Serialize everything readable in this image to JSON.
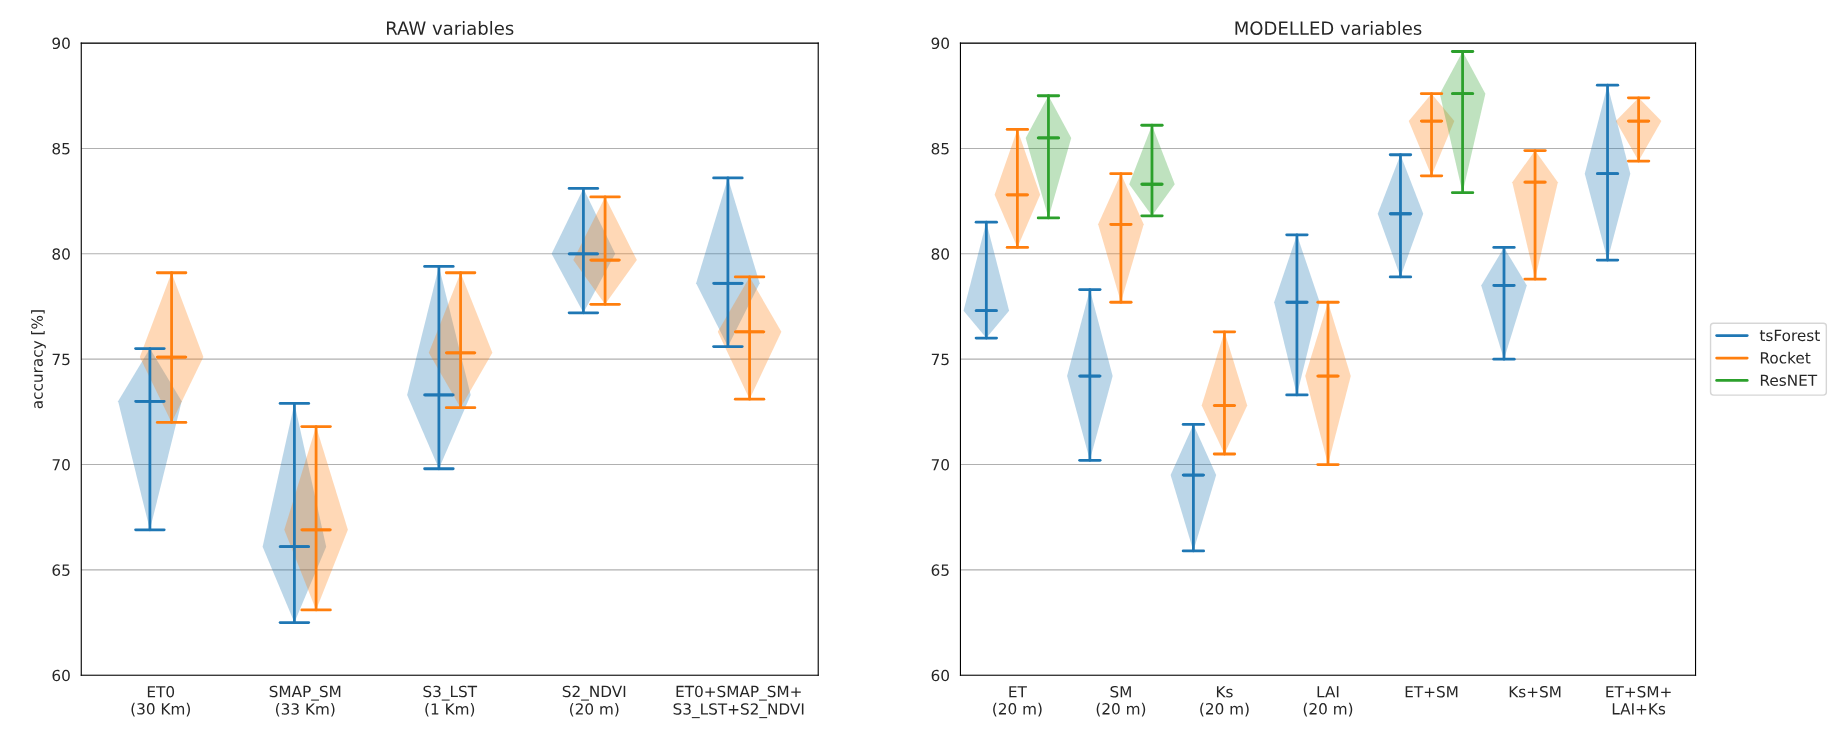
{
  "chart_data": [
    {
      "type": "box",
      "title": "RAW variables",
      "ylabel": "accuracy [%]",
      "categories": [
        "ET0\n(30 Km)",
        "SMAP_SM\n(33 Km)",
        "S3_LST\n(1 Km)",
        "S2_NDVI\n(20 m)",
        "ET0+SMAP_SM+\nS3_LST+S2_NDVI"
      ],
      "ylim": [
        60,
        90
      ],
      "yticks": [
        60,
        65,
        70,
        75,
        80,
        85,
        90
      ],
      "grid": "y",
      "legend": false,
      "series": [
        {
          "color": "#1f77b4",
          "boxes": [
            {
              "low": 66.9,
              "q1": 73.0,
              "median": 73.0,
              "q3": 73.0,
              "high": 75.5
            },
            {
              "low": 62.5,
              "q1": 66.1,
              "median": 66.1,
              "q3": 66.1,
              "high": 72.9
            },
            {
              "low": 69.8,
              "q1": 73.3,
              "median": 73.3,
              "q3": 73.3,
              "high": 79.4
            },
            {
              "low": 77.2,
              "q1": 80.0,
              "median": 80.0,
              "q3": 80.0,
              "high": 83.1
            },
            {
              "low": 75.6,
              "q1": 78.6,
              "median": 78.6,
              "q3": 78.6,
              "high": 83.6
            }
          ]
        },
        {
          "color": "#ff7f0e",
          "boxes": [
            {
              "low": 72.0,
              "q1": 75.1,
              "median": 75.1,
              "q3": 75.1,
              "high": 79.1
            },
            {
              "low": 63.1,
              "q1": 66.9,
              "median": 66.9,
              "q3": 66.9,
              "high": 71.8
            },
            {
              "low": 72.7,
              "q1": 75.3,
              "median": 75.3,
              "q3": 75.3,
              "high": 79.1
            },
            {
              "low": 77.6,
              "q1": 79.7,
              "median": 79.7,
              "q3": 79.7,
              "high": 82.7
            },
            {
              "low": 73.1,
              "q1": 76.3,
              "median": 76.3,
              "q3": 76.3,
              "high": 78.9
            }
          ]
        }
      ]
    },
    {
      "type": "box",
      "title": "MODELLED variables",
      "categories": [
        "ET\n(20 m)",
        "SM\n(20 m)",
        "Ks\n(20 m)",
        "LAI\n(20 m)",
        "ET+SM",
        "Ks+SM",
        "ET+SM+\nLAI+Ks"
      ],
      "ylim": [
        60,
        90
      ],
      "yticks": [
        60,
        65,
        70,
        75,
        80,
        85,
        90
      ],
      "grid": "y",
      "legend": "right",
      "series": [
        {
          "name": "tsForest",
          "color": "#1f77b4",
          "boxes": [
            {
              "low": 76.0,
              "q1": 77.3,
              "median": 77.3,
              "q3": 77.3,
              "high": 81.5
            },
            {
              "low": 70.2,
              "q1": 74.2,
              "median": 74.2,
              "q3": 74.2,
              "high": 78.3
            },
            {
              "low": 65.9,
              "q1": 69.5,
              "median": 69.5,
              "q3": 69.5,
              "high": 71.9
            },
            {
              "low": 73.3,
              "q1": 77.7,
              "median": 77.7,
              "q3": 77.7,
              "high": 80.9
            },
            {
              "low": 78.9,
              "q1": 81.9,
              "median": 81.9,
              "q3": 81.9,
              "high": 84.7
            },
            {
              "low": 75.0,
              "q1": 78.5,
              "median": 78.5,
              "q3": 78.5,
              "high": 80.3
            },
            {
              "low": 79.7,
              "q1": 83.8,
              "median": 83.8,
              "q3": 83.8,
              "high": 88.0
            }
          ]
        },
        {
          "name": "Rocket",
          "color": "#ff7f0e",
          "boxes": [
            {
              "low": 80.3,
              "q1": 82.8,
              "median": 82.8,
              "q3": 82.8,
              "high": 85.9
            },
            {
              "low": 77.7,
              "q1": 81.4,
              "median": 81.4,
              "q3": 81.4,
              "high": 83.8
            },
            {
              "low": 70.5,
              "q1": 72.8,
              "median": 72.8,
              "q3": 72.8,
              "high": 76.3
            },
            {
              "low": 70.0,
              "q1": 74.2,
              "median": 74.2,
              "q3": 74.2,
              "high": 77.7
            },
            {
              "low": 83.7,
              "q1": 86.3,
              "median": 86.3,
              "q3": 86.3,
              "high": 87.6
            },
            {
              "low": 78.8,
              "q1": 83.4,
              "median": 83.4,
              "q3": 83.4,
              "high": 84.9
            },
            {
              "low": 84.4,
              "q1": 86.3,
              "median": 86.3,
              "q3": 86.3,
              "high": 87.4
            }
          ]
        },
        {
          "name": "ResNET",
          "color": "#2ca02c",
          "boxes": [
            {
              "low": 81.7,
              "q1": 85.5,
              "median": 85.5,
              "q3": 85.5,
              "high": 87.5
            },
            {
              "low": 81.8,
              "q1": 83.3,
              "median": 83.3,
              "q3": 83.3,
              "high": 86.1
            },
            null,
            null,
            {
              "low": 82.9,
              "q1": 87.6,
              "median": 87.6,
              "q3": 87.6,
              "high": 89.6
            },
            null,
            null
          ]
        }
      ]
    }
  ]
}
